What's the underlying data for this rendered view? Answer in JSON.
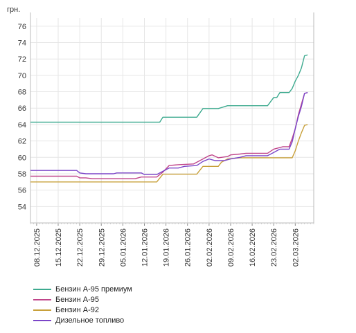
{
  "chart_data": {
    "type": "line",
    "ylabel": "грн.",
    "ylim": [
      52,
      77
    ],
    "yticks": [
      54,
      56,
      58,
      60,
      62,
      64,
      66,
      68,
      70,
      72,
      74,
      76
    ],
    "xlim": [
      "2025-12-06",
      "2026-03-08"
    ],
    "xtick_labels": [
      "08.12.2025",
      "15.12.2025",
      "22.12.2025",
      "29.12.2025",
      "05.01.2026",
      "12.01.2026",
      "19.01.2026",
      "26.01.2026",
      "02.02.2026",
      "09.02.2026",
      "16.02.2026",
      "23.02.2026",
      "02.03.2026"
    ],
    "xtick_dates": [
      "2025-12-08",
      "2025-12-15",
      "2025-12-22",
      "2025-12-29",
      "2026-01-05",
      "2026-01-12",
      "2026-01-19",
      "2026-01-26",
      "2026-02-02",
      "2026-02-09",
      "2026-02-16",
      "2026-02-23",
      "2026-03-02"
    ],
    "grid": true,
    "legend_position": "bottom-left",
    "series": [
      {
        "name": "Бензин А-95 премиум",
        "color": "#3daa8f",
        "points": [
          [
            "2025-12-06",
            64.3
          ],
          [
            "2026-01-17",
            64.3
          ],
          [
            "2026-01-18",
            64.9
          ],
          [
            "2026-01-29",
            64.9
          ],
          [
            "2026-01-31",
            65.95
          ],
          [
            "2026-02-05",
            65.95
          ],
          [
            "2026-02-08",
            66.3
          ],
          [
            "2026-02-21",
            66.3
          ],
          [
            "2026-02-23",
            67.3
          ],
          [
            "2026-02-24",
            67.3
          ],
          [
            "2026-02-25",
            67.9
          ],
          [
            "2026-02-28",
            67.9
          ],
          [
            "2026-03-01",
            68.4
          ],
          [
            "2026-03-02",
            69.3
          ],
          [
            "2026-03-03",
            70.0
          ],
          [
            "2026-03-04",
            70.9
          ],
          [
            "2026-03-05",
            72.4
          ],
          [
            "2026-03-06",
            72.5
          ]
        ]
      },
      {
        "name": "Бензин А-95",
        "color": "#c0458a",
        "points": [
          [
            "2025-12-06",
            57.7
          ],
          [
            "2025-12-21",
            57.7
          ],
          [
            "2025-12-22",
            57.5
          ],
          [
            "2025-12-24",
            57.5
          ],
          [
            "2025-12-26",
            57.4
          ],
          [
            "2026-01-09",
            57.4
          ],
          [
            "2026-01-11",
            57.6
          ],
          [
            "2026-01-16",
            57.6
          ],
          [
            "2026-01-18",
            58.2
          ],
          [
            "2026-01-20",
            59.0
          ],
          [
            "2026-01-23",
            59.1
          ],
          [
            "2026-01-28",
            59.2
          ],
          [
            "2026-01-31",
            59.8
          ],
          [
            "2026-02-02",
            60.2
          ],
          [
            "2026-02-03",
            60.3
          ],
          [
            "2026-02-05",
            59.95
          ],
          [
            "2026-02-08",
            60.1
          ],
          [
            "2026-02-09",
            60.3
          ],
          [
            "2026-02-12",
            60.4
          ],
          [
            "2026-02-14",
            60.5
          ],
          [
            "2026-02-21",
            60.5
          ],
          [
            "2026-02-23",
            61.0
          ],
          [
            "2026-02-26",
            61.3
          ],
          [
            "2026-02-28",
            61.3
          ],
          [
            "2026-03-01",
            62.3
          ],
          [
            "2026-03-02",
            63.5
          ],
          [
            "2026-03-03",
            65.2
          ],
          [
            "2026-03-04",
            66.5
          ],
          [
            "2026-03-05",
            67.8
          ],
          [
            "2026-03-06",
            67.9
          ]
        ]
      },
      {
        "name": "Бензин А-92",
        "color": "#c8a03a",
        "points": [
          [
            "2025-12-06",
            57.0
          ],
          [
            "2026-01-16",
            57.0
          ],
          [
            "2026-01-18",
            57.95
          ],
          [
            "2026-01-29",
            57.95
          ],
          [
            "2026-01-31",
            58.9
          ],
          [
            "2026-02-05",
            58.9
          ],
          [
            "2026-02-06",
            59.4
          ],
          [
            "2026-02-08",
            59.8
          ],
          [
            "2026-02-12",
            59.95
          ],
          [
            "2026-03-01",
            59.95
          ],
          [
            "2026-03-02",
            60.8
          ],
          [
            "2026-03-03",
            62.0
          ],
          [
            "2026-03-04",
            63.0
          ],
          [
            "2026-03-05",
            63.9
          ],
          [
            "2026-03-06",
            64.0
          ]
        ]
      },
      {
        "name": "Дизельное топливо",
        "color": "#7b45c8",
        "points": [
          [
            "2025-12-06",
            58.4
          ],
          [
            "2025-12-21",
            58.4
          ],
          [
            "2025-12-22",
            58.1
          ],
          [
            "2025-12-24",
            58.0
          ],
          [
            "2026-01-02",
            58.0
          ],
          [
            "2026-01-03",
            58.1
          ],
          [
            "2026-01-11",
            58.1
          ],
          [
            "2026-01-12",
            57.9
          ],
          [
            "2026-01-16",
            57.9
          ],
          [
            "2026-01-18",
            58.3
          ],
          [
            "2026-01-20",
            58.7
          ],
          [
            "2026-01-23",
            58.7
          ],
          [
            "2026-01-25",
            58.9
          ],
          [
            "2026-01-29",
            59.0
          ],
          [
            "2026-01-31",
            59.5
          ],
          [
            "2026-02-02",
            59.8
          ],
          [
            "2026-02-04",
            59.6
          ],
          [
            "2026-02-07",
            59.6
          ],
          [
            "2026-02-09",
            59.8
          ],
          [
            "2026-02-12",
            60.0
          ],
          [
            "2026-02-14",
            60.2
          ],
          [
            "2026-02-21",
            60.2
          ],
          [
            "2026-02-23",
            60.6
          ],
          [
            "2026-02-25",
            61.0
          ],
          [
            "2026-02-28",
            61.0
          ],
          [
            "2026-03-01",
            61.9
          ],
          [
            "2026-03-02",
            63.5
          ],
          [
            "2026-03-03",
            65.0
          ],
          [
            "2026-03-04",
            66.2
          ],
          [
            "2026-03-05",
            67.8
          ],
          [
            "2026-03-06",
            67.9
          ]
        ]
      }
    ]
  }
}
